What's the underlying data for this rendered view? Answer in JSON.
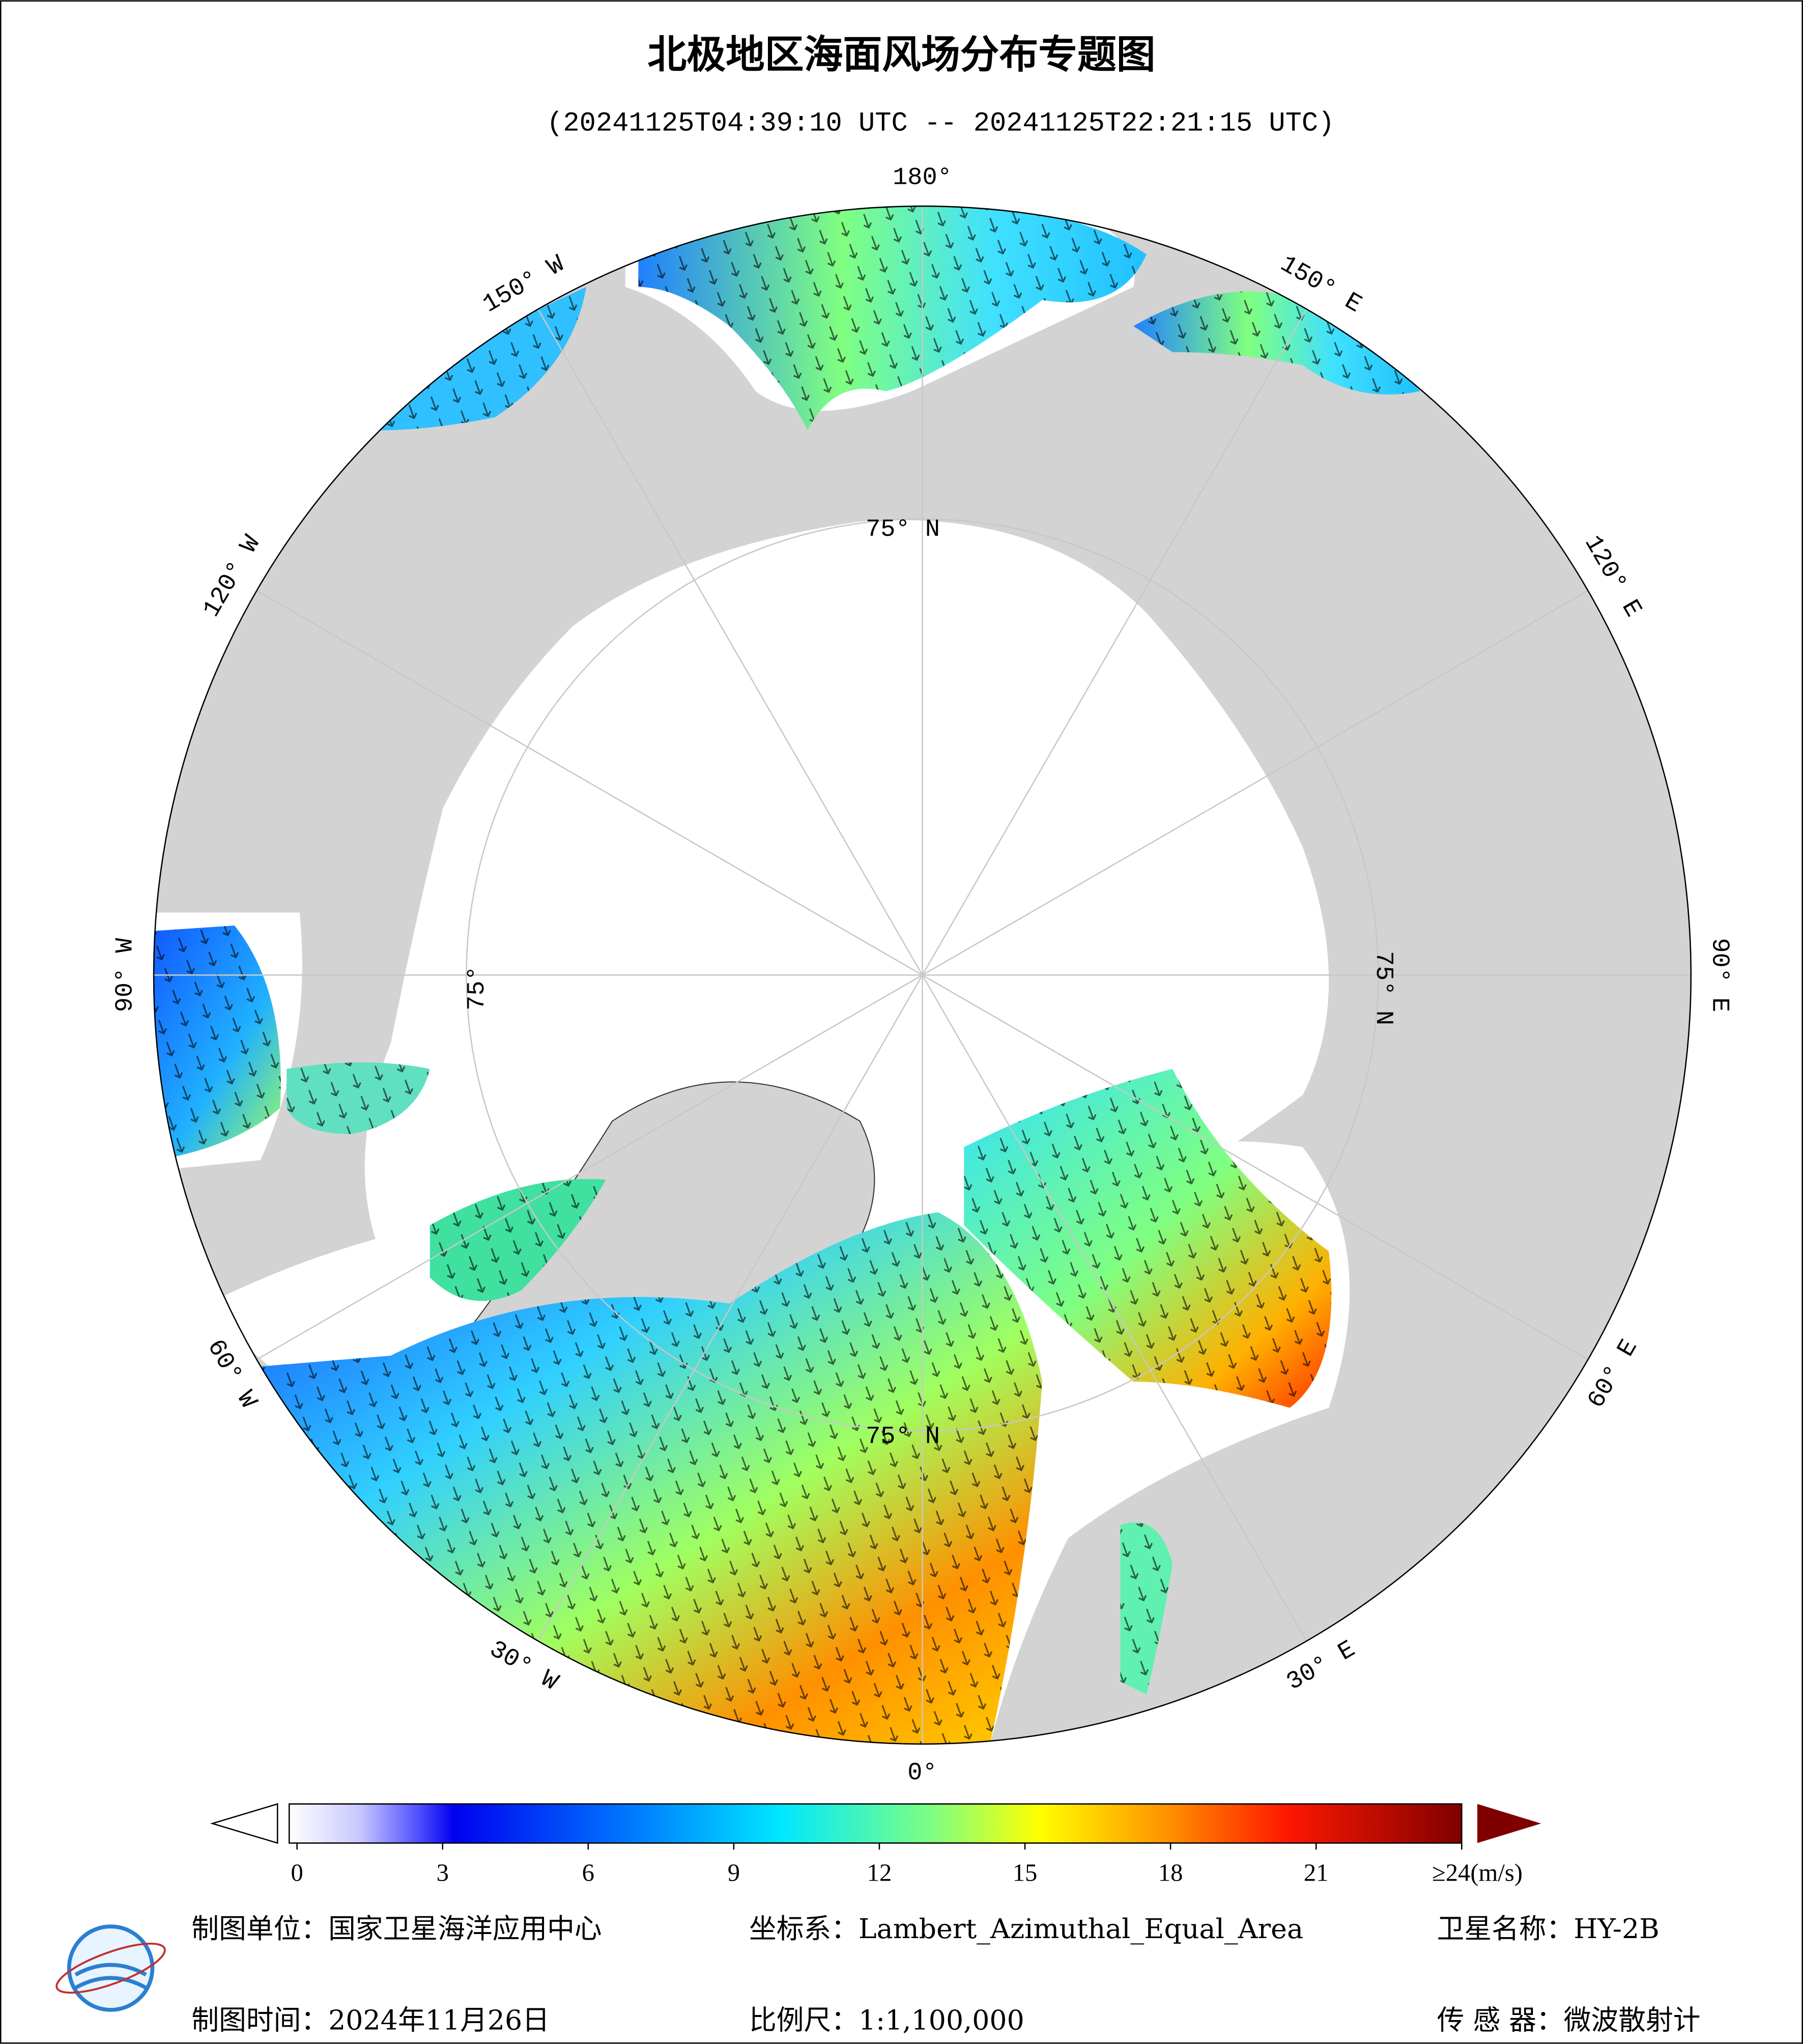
{
  "header": {
    "title": "北极地区海面风场分布专题图",
    "subtitle": "(20241125T04:39:10 UTC -- 20241125T22:21:15 UTC)"
  },
  "map": {
    "lon_labels": [
      "180°",
      "150° E",
      "120° E",
      "90° E",
      "60° E",
      "30° E",
      "0°",
      "30° W",
      "60° W",
      "90° W",
      "120° W",
      "150° W"
    ],
    "lat_labels": [
      "75° N",
      "75° N",
      "75° N",
      "75°"
    ]
  },
  "colorbar": {
    "lim": [
      0,
      24
    ],
    "ticks": [
      0,
      3,
      6,
      9,
      12,
      15,
      18,
      21,
      {
        "value": 24,
        "label": "≥24(m/s)"
      }
    ]
  },
  "footer": {
    "items": [
      "制图单位：国家卫星海洋应用中心",
      "坐标系：Lambert_Azimuthal_Equal_Area",
      "卫星名称：HY-2B",
      "制图时间：2024年11月26日",
      "比例尺：1:1,100,000",
      "传 感 器：微波散射计"
    ]
  }
}
